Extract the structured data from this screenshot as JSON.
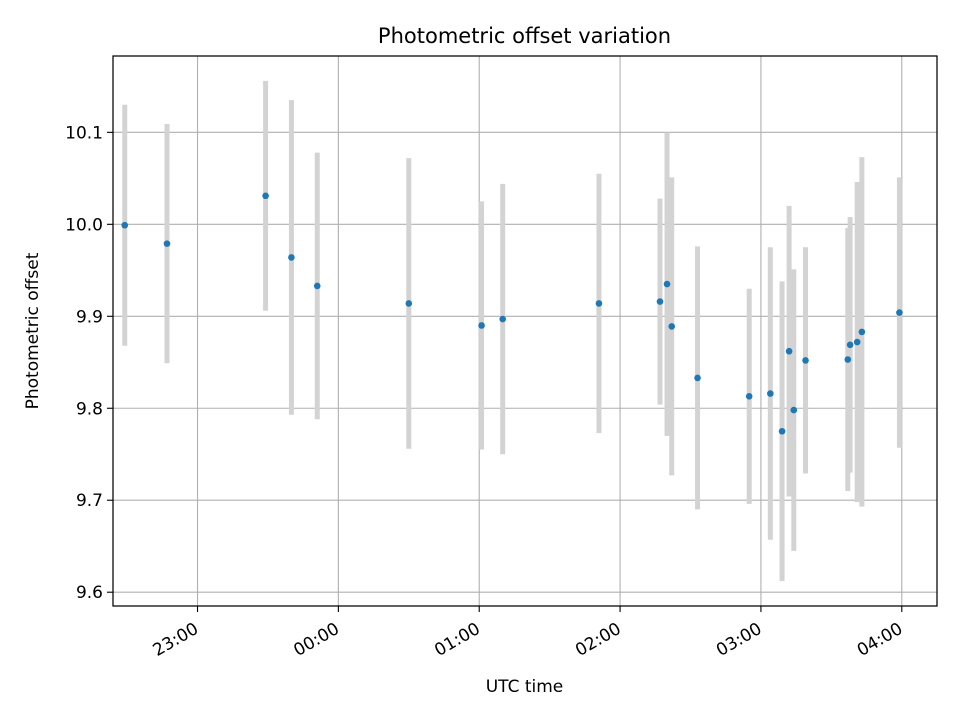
{
  "chart_data": {
    "type": "scatter",
    "title": "Photometric offset variation",
    "xlabel": "UTC time",
    "ylabel": "Photometric offset",
    "x_unit": "UTC time, day of 22:xx–04:xx (times after midnight are next day)",
    "xticks": [
      "23:00",
      "00:00",
      "01:00",
      "02:00",
      "03:00",
      "04:00"
    ],
    "yticks": [
      "9.6",
      "9.7",
      "9.8",
      "9.9",
      "10.0",
      "10.1"
    ],
    "ylim": [
      9.585,
      10.183
    ],
    "xlim": [
      "22:24",
      "04:15"
    ],
    "grid": true,
    "legend": "none",
    "colors": {
      "point": "#1f77b4",
      "errorbar": "#d3d3d3",
      "grid": "#b0b0b0"
    },
    "series": [
      {
        "points": [
          {
            "t": "22:29",
            "y": 9.999,
            "err": 0.131
          },
          {
            "t": "22:47",
            "y": 9.979,
            "err": 0.13
          },
          {
            "t": "23:29",
            "y": 10.031,
            "err": 0.125
          },
          {
            "t": "23:40",
            "y": 9.964,
            "err": 0.171
          },
          {
            "t": "23:51",
            "y": 9.933,
            "err": 0.145
          },
          {
            "t": "00:30",
            "y": 9.914,
            "err": 0.158
          },
          {
            "t": "01:01",
            "y": 9.89,
            "err": 0.135
          },
          {
            "t": "01:10",
            "y": 9.897,
            "err": 0.147
          },
          {
            "t": "01:51",
            "y": 9.914,
            "err": 0.141
          },
          {
            "t": "02:17",
            "y": 9.916,
            "err": 0.112
          },
          {
            "t": "02:20",
            "y": 9.935,
            "err": 0.165
          },
          {
            "t": "02:22",
            "y": 9.889,
            "err": 0.162
          },
          {
            "t": "02:33",
            "y": 9.833,
            "err": 0.143
          },
          {
            "t": "02:55",
            "y": 9.813,
            "err": 0.117
          },
          {
            "t": "03:04",
            "y": 9.816,
            "err": 0.159
          },
          {
            "t": "03:09",
            "y": 9.775,
            "err": 0.163
          },
          {
            "t": "03:12",
            "y": 9.862,
            "err": 0.158
          },
          {
            "t": "03:14",
            "y": 9.798,
            "err": 0.153
          },
          {
            "t": "03:19",
            "y": 9.852,
            "err": 0.123
          },
          {
            "t": "03:37",
            "y": 9.853,
            "err": 0.143
          },
          {
            "t": "03:38",
            "y": 9.869,
            "err": 0.139
          },
          {
            "t": "03:41",
            "y": 9.872,
            "err": 0.174
          },
          {
            "t": "03:43",
            "y": 9.883,
            "err": 0.19
          },
          {
            "t": "03:59",
            "y": 9.904,
            "err": 0.147
          }
        ]
      }
    ]
  }
}
